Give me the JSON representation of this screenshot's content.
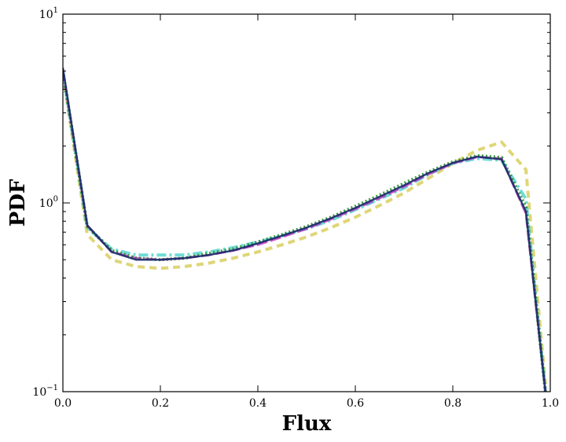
{
  "chart_data": {
    "type": "line",
    "title": "",
    "xlabel": "Flux",
    "ylabel": "PDF",
    "xlim": [
      0.0,
      1.0
    ],
    "ylim": [
      0.1,
      10
    ],
    "yscale": "log",
    "grid": false,
    "legend": "none",
    "x_ticks": [
      "0.0",
      "0.2",
      "0.4",
      "0.6",
      "0.8",
      "1.0"
    ],
    "y_ticks": [
      {
        "base": "10",
        "exp": "−1",
        "value": 0.1
      },
      {
        "base": "10",
        "exp": "0",
        "value": 1
      },
      {
        "base": "10",
        "exp": "1",
        "value": 10
      }
    ],
    "x": [
      0.0,
      0.05,
      0.1,
      0.15,
      0.2,
      0.25,
      0.3,
      0.35,
      0.4,
      0.45,
      0.5,
      0.55,
      0.6,
      0.65,
      0.7,
      0.75,
      0.8,
      0.85,
      0.9,
      0.95,
      0.99
    ],
    "series": [
      {
        "color": "#d4c84a",
        "dash": "9,6",
        "width": 4,
        "opacity": 0.75,
        "values": [
          4.8,
          0.68,
          0.5,
          0.46,
          0.45,
          0.46,
          0.48,
          0.51,
          0.55,
          0.6,
          0.66,
          0.74,
          0.84,
          0.97,
          1.13,
          1.35,
          1.62,
          1.9,
          2.1,
          1.5,
          0.11
        ]
      },
      {
        "color": "#40d0c8",
        "dash": "12,4,3,4",
        "width": 4,
        "opacity": 0.75,
        "values": [
          4.9,
          0.74,
          0.57,
          0.53,
          0.53,
          0.53,
          0.55,
          0.58,
          0.62,
          0.67,
          0.73,
          0.81,
          0.92,
          1.05,
          1.2,
          1.42,
          1.62,
          1.72,
          1.68,
          1.05,
          0.1
        ]
      },
      {
        "color": "#c030c0",
        "dash": "14,4",
        "width": 3,
        "opacity": 0.8,
        "values": [
          5.0,
          0.76,
          0.55,
          0.51,
          0.5,
          0.51,
          0.53,
          0.56,
          0.6,
          0.66,
          0.73,
          0.82,
          0.93,
          1.06,
          1.22,
          1.42,
          1.62,
          1.75,
          1.72,
          0.88,
          0.1
        ]
      },
      {
        "color": "#228822",
        "dash": "2,3",
        "width": 4,
        "opacity": 0.85,
        "values": [
          5.0,
          0.75,
          0.56,
          0.51,
          0.5,
          0.51,
          0.54,
          0.57,
          0.62,
          0.68,
          0.75,
          0.84,
          0.96,
          1.1,
          1.27,
          1.46,
          1.65,
          1.78,
          1.74,
          0.95,
          0.1
        ]
      },
      {
        "color": "#1a2a6a",
        "dash": "",
        "width": 2.5,
        "opacity": 0.9,
        "values": [
          5.2,
          0.76,
          0.55,
          0.5,
          0.5,
          0.51,
          0.53,
          0.56,
          0.61,
          0.67,
          0.74,
          0.83,
          0.94,
          1.08,
          1.24,
          1.44,
          1.63,
          1.76,
          1.7,
          0.9,
          0.1
        ]
      }
    ]
  }
}
